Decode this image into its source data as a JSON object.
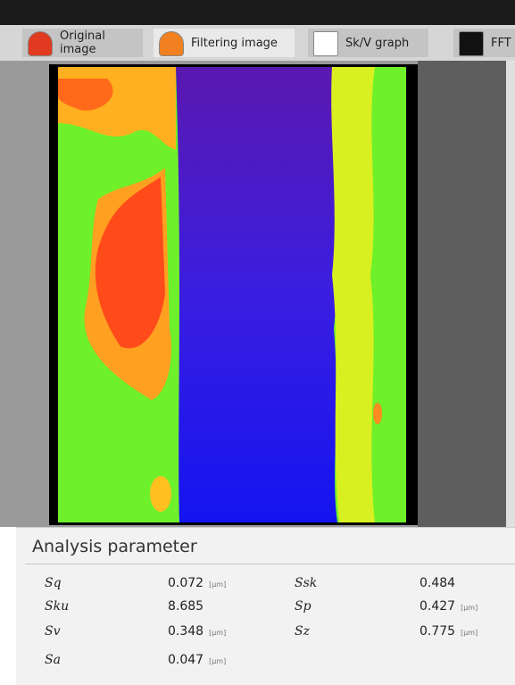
{
  "tabs": [
    {
      "label": "Original image"
    },
    {
      "label": "Filtering image"
    },
    {
      "label": "Sk/V graph"
    },
    {
      "label": "FFT"
    }
  ],
  "panel": {
    "title": "Analysis parameter",
    "rows": [
      [
        {
          "name": "Sq",
          "value": "0.072",
          "unit": "[µm]"
        },
        {
          "name": "Ssk",
          "value": "0.484"
        }
      ],
      [
        {
          "name": "Sku",
          "value": "8.685"
        },
        {
          "name": "Sp",
          "value": "0.427",
          "unit": "[µm]"
        }
      ],
      [
        {
          "name": "Sv",
          "value": "0.348",
          "unit": "[µm]"
        },
        {
          "name": "Sz",
          "value": "0.775",
          "unit": "[µm]"
        }
      ],
      [
        {
          "name": "Sa",
          "value": "0.047",
          "unit": "[µm]"
        }
      ]
    ]
  }
}
